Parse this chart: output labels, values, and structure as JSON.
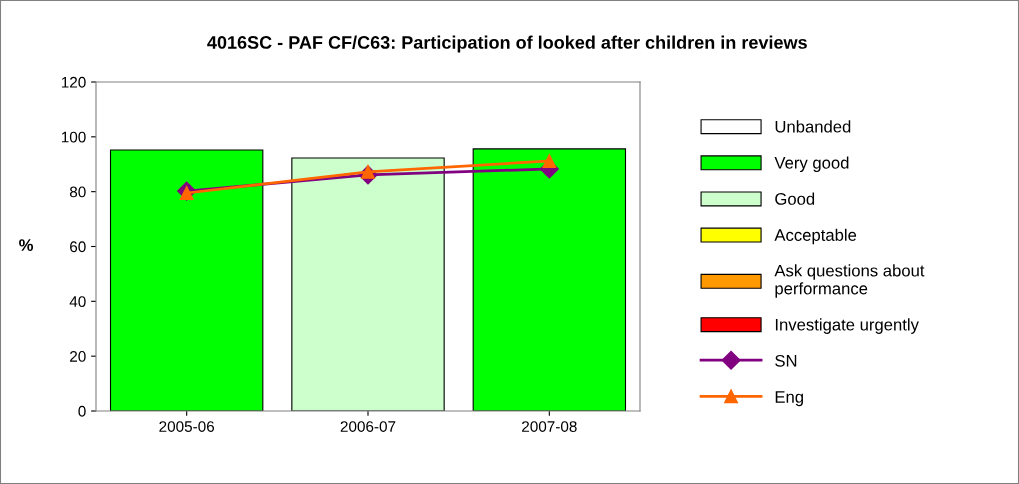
{
  "chart_data": {
    "type": "bar",
    "title": "4016SC - PAF CF/C63: Participation of looked after children in reviews",
    "ylabel": "%",
    "categories": [
      "2005-06",
      "2006-07",
      "2007-08"
    ],
    "ylim": [
      0,
      120
    ],
    "yticks": [
      0,
      20,
      40,
      60,
      80,
      100,
      120
    ],
    "grid": false,
    "legend": "right",
    "series": [
      {
        "name": "Unbanded",
        "color": "#ffffff",
        "values": [
          null,
          null,
          null
        ]
      },
      {
        "name": "Very good",
        "color": "#00ff00",
        "values": [
          95.2,
          null,
          95.6
        ]
      },
      {
        "name": "Good",
        "color": "#ccffcc",
        "values": [
          null,
          92.3,
          null
        ]
      },
      {
        "name": "Acceptable",
        "color": "#ffff00",
        "values": [
          null,
          null,
          null
        ]
      },
      {
        "name": "Ask questions about performance",
        "color": "#ff9900",
        "values": [
          null,
          null,
          null
        ]
      },
      {
        "name": "Investigate urgently",
        "color": "#ff0000",
        "values": [
          null,
          null,
          null
        ]
      },
      {
        "name": "SN",
        "type": "line",
        "marker": "diamond",
        "color": "#800080",
        "values": [
          80.2,
          86.1,
          88.3
        ]
      },
      {
        "name": "Eng",
        "type": "line",
        "marker": "triangle",
        "color": "#ff6600",
        "values": [
          79.5,
          87.2,
          91.2
        ]
      }
    ]
  }
}
